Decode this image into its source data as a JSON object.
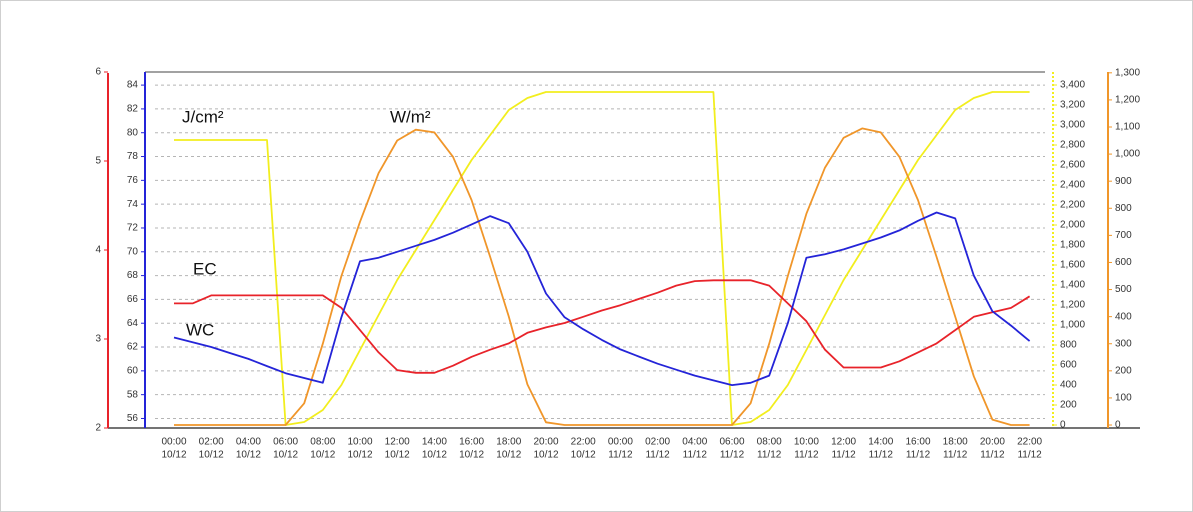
{
  "chart_data": {
    "type": "line",
    "categories": [
      "00:00",
      null,
      "02:00",
      null,
      "04:00",
      null,
      "06:00",
      null,
      "08:00",
      null,
      "10:00",
      null,
      "12:00",
      null,
      "14:00",
      null,
      "16:00",
      null,
      "18:00",
      null,
      "20:00",
      null,
      "22:00",
      null,
      "00:00",
      null,
      "02:00",
      null,
      "04:00",
      null,
      "06:00",
      null,
      "08:00",
      null,
      "10:00",
      null,
      "12:00",
      null,
      "14:00",
      null,
      "16:00",
      null,
      "18:00",
      null,
      "20:00",
      null,
      "22:00"
    ],
    "dates": [
      "10/12",
      null,
      "10/12",
      null,
      "10/12",
      null,
      "10/12",
      null,
      "10/12",
      null,
      "10/12",
      null,
      "10/12",
      null,
      "10/12",
      null,
      "10/12",
      null,
      "10/12",
      null,
      "10/12",
      null,
      "10/12",
      null,
      "11/12",
      null,
      "11/12",
      null,
      "11/12",
      null,
      "11/12",
      null,
      "11/12",
      null,
      "11/12",
      null,
      "11/12",
      null,
      "11/12",
      null,
      "11/12",
      null,
      "11/12",
      null,
      "11/12",
      null,
      "11/12"
    ],
    "series": [
      {
        "name": "EC",
        "color": "#e8232a",
        "axis": "y",
        "values": [
          3.4,
          3.4,
          3.49,
          3.49,
          3.49,
          3.49,
          3.49,
          3.49,
          3.49,
          3.35,
          3.1,
          2.85,
          2.65,
          2.62,
          2.62,
          2.7,
          2.8,
          2.88,
          2.95,
          3.07,
          3.13,
          3.18,
          3.25,
          3.32,
          3.38,
          3.45,
          3.52,
          3.6,
          3.65,
          3.66,
          3.66,
          3.66,
          3.6,
          3.4,
          3.2,
          2.88,
          2.68,
          2.68,
          2.68,
          2.75,
          2.85,
          2.95,
          3.1,
          3.25,
          3.3,
          3.35,
          3.48
        ]
      },
      {
        "name": "WC",
        "color": "#2424d8",
        "axis": "y2",
        "values": [
          62.8,
          62.4,
          62.0,
          61.5,
          61.0,
          60.4,
          59.8,
          59.4,
          59.0,
          64.5,
          69.2,
          69.5,
          70.0,
          70.5,
          71.0,
          71.6,
          72.3,
          73.0,
          72.4,
          70.0,
          66.5,
          64.5,
          63.5,
          62.6,
          61.8,
          61.2,
          60.6,
          60.1,
          59.6,
          59.2,
          58.8,
          59.0,
          59.6,
          64.0,
          69.5,
          69.8,
          70.2,
          70.7,
          71.2,
          71.8,
          72.6,
          73.3,
          72.8,
          68.0,
          65.0,
          63.8,
          62.5
        ]
      },
      {
        "name": "J/cm²",
        "color": "#f2ee1e",
        "axis": "y3",
        "values": [
          2850,
          2850,
          2850,
          2850,
          2850,
          2850,
          0,
          30,
          150,
          400,
          750,
          1100,
          1450,
          1750,
          2050,
          2350,
          2650,
          2900,
          3150,
          3270,
          3330,
          3330,
          3330,
          3330,
          3330,
          3330,
          3330,
          3330,
          3330,
          3330,
          0,
          30,
          150,
          400,
          750,
          1100,
          1450,
          1750,
          2050,
          2350,
          2650,
          2900,
          3150,
          3270,
          3330,
          3330,
          3330
        ]
      },
      {
        "name": "W/m²",
        "color": "#f0962a",
        "axis": "y4",
        "values": [
          0,
          0,
          0,
          0,
          0,
          0,
          0,
          80,
          300,
          550,
          750,
          930,
          1050,
          1090,
          1080,
          990,
          830,
          620,
          400,
          150,
          10,
          0,
          0,
          0,
          0,
          0,
          0,
          0,
          0,
          0,
          0,
          80,
          300,
          550,
          780,
          950,
          1060,
          1095,
          1080,
          990,
          830,
          620,
          400,
          180,
          20,
          0,
          0
        ]
      }
    ],
    "ylim": [
      2,
      6
    ],
    "yticks": [
      2,
      3,
      4,
      5,
      6
    ],
    "y2lim": [
      55.2,
      85.1
    ],
    "y2ticks": [
      56,
      58,
      60,
      62,
      64,
      66,
      68,
      70,
      72,
      74,
      76,
      78,
      80,
      82,
      84
    ],
    "y3lim": [
      -30,
      3530
    ],
    "y3ticks": [
      0,
      200,
      400,
      600,
      800,
      {
        "value": 1000,
        "label": "1,000"
      },
      {
        "value": 1200,
        "label": "1,200"
      },
      {
        "value": 1400,
        "label": "1,400"
      },
      {
        "value": 1600,
        "label": "1,600"
      },
      {
        "value": 1800,
        "label": "1,800"
      },
      {
        "value": 2000,
        "label": "2,000"
      },
      {
        "value": 2200,
        "label": "2,200"
      },
      {
        "value": 2400,
        "label": "2,400"
      },
      {
        "value": 2600,
        "label": "2,600"
      },
      {
        "value": 2800,
        "label": "2,800"
      },
      {
        "value": 3000,
        "label": "3,000"
      },
      {
        "value": 3200,
        "label": "3,200"
      },
      {
        "value": 3400,
        "label": "3,400"
      }
    ],
    "y4lim": [
      -11,
      1303
    ],
    "y4ticks": [
      0,
      100,
      200,
      300,
      400,
      500,
      600,
      700,
      800,
      900,
      {
        "value": 1000,
        "label": "1,000"
      },
      {
        "value": 1100,
        "label": "1,100"
      },
      {
        "value": 1200,
        "label": "1,200"
      },
      {
        "value": 1300,
        "label": "1,300"
      }
    ],
    "grid": true
  }
}
